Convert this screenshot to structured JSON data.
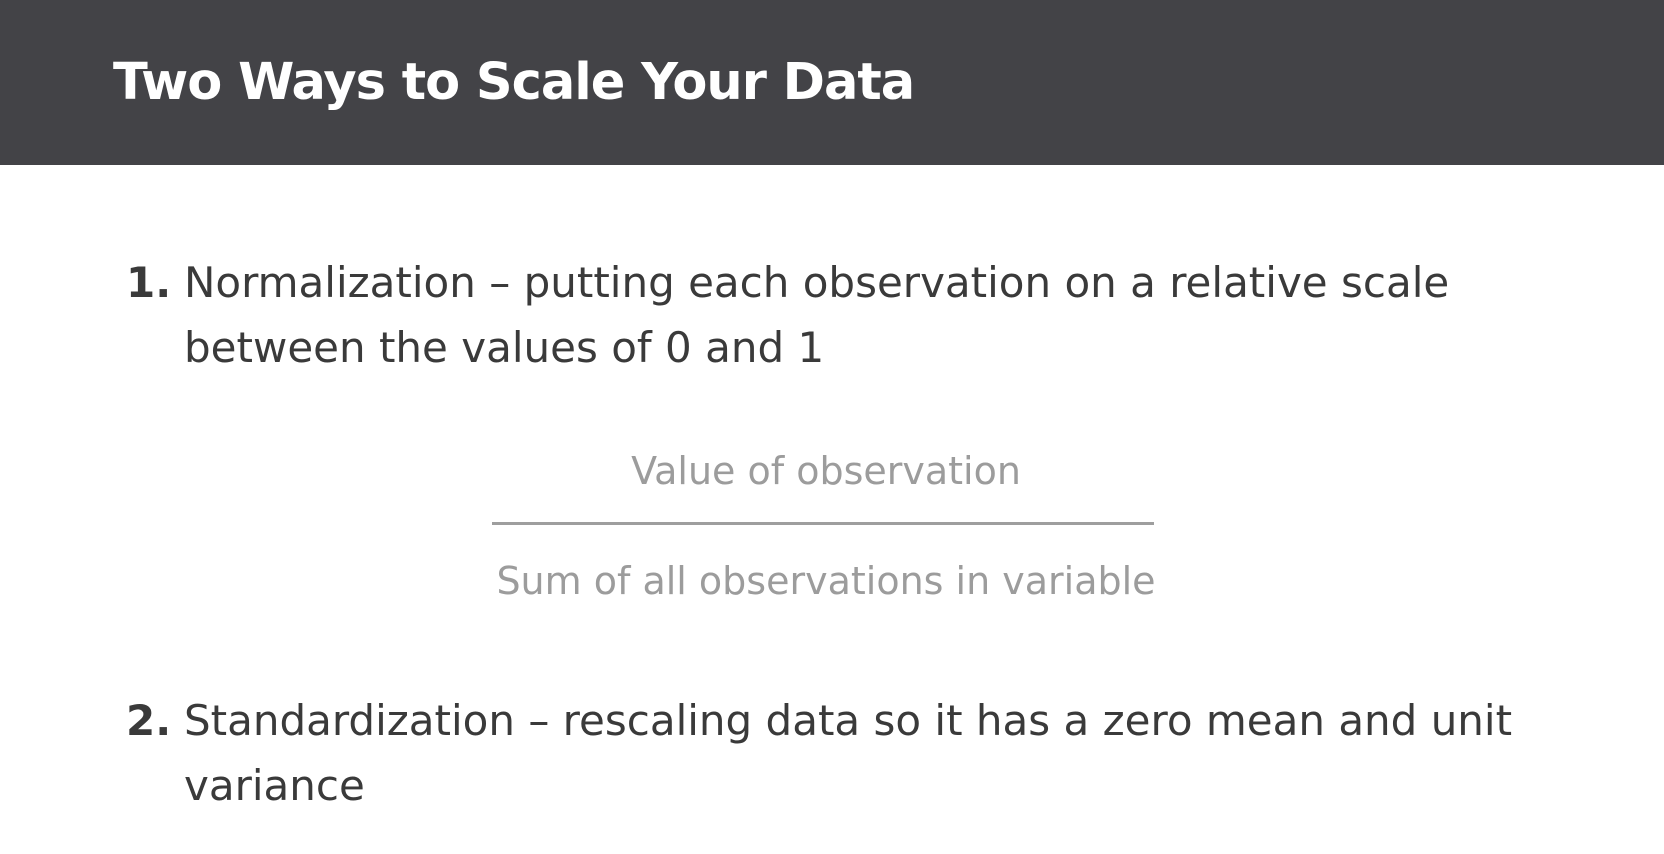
{
  "slide": {
    "title": "Two Ways to Scale Your Data"
  },
  "items": [
    {
      "number": "1.",
      "text": "Normalization – putting each observation on a relative scale between the values of 0 and 1"
    },
    {
      "number": "2.",
      "text": "Standardization – rescaling data so it has a zero mean and unit variance"
    }
  ],
  "formula": {
    "numerator": "Value of observation",
    "denominator": "Sum of all observations in variable"
  },
  "colors": {
    "header_background": "#434347",
    "title_text": "#ffffff",
    "body_text": "#3a3a3a",
    "formula_text": "#9c9c9c"
  }
}
